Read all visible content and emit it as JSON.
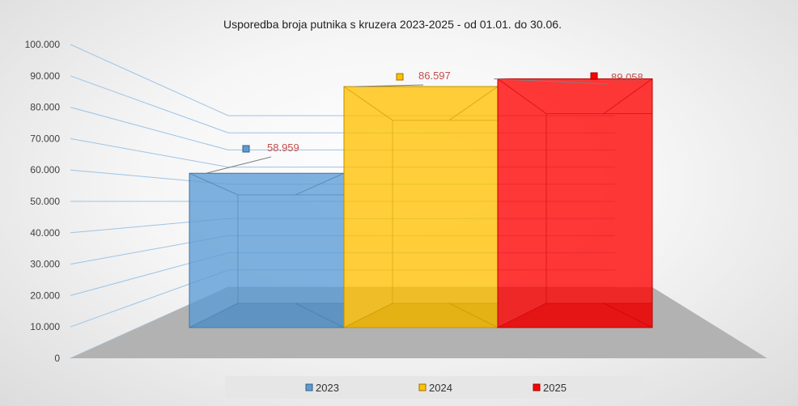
{
  "chart_data": {
    "type": "bar",
    "title": "Usporedba broja putnika s kruzera 2023-2025 - od 01.01. do 30.06.",
    "categories": [
      "2023",
      "2024",
      "2025"
    ],
    "values": [
      58959,
      86597,
      89058
    ],
    "data_labels": [
      "58.959",
      "86.597",
      "89.058"
    ],
    "ylim": [
      0,
      100000
    ],
    "ytick_labels": [
      "0",
      "10.000",
      "20.000",
      "30.000",
      "40.000",
      "50.000",
      "60.000",
      "70.000",
      "80.000",
      "90.000",
      "100.000"
    ],
    "legend": [
      "2023",
      "2024",
      "2025"
    ],
    "legend_position": "bottom",
    "grid": true,
    "colors": [
      "#5b9bd5",
      "#ffc000",
      "#ff0000"
    ],
    "style": "3d-perspective"
  }
}
